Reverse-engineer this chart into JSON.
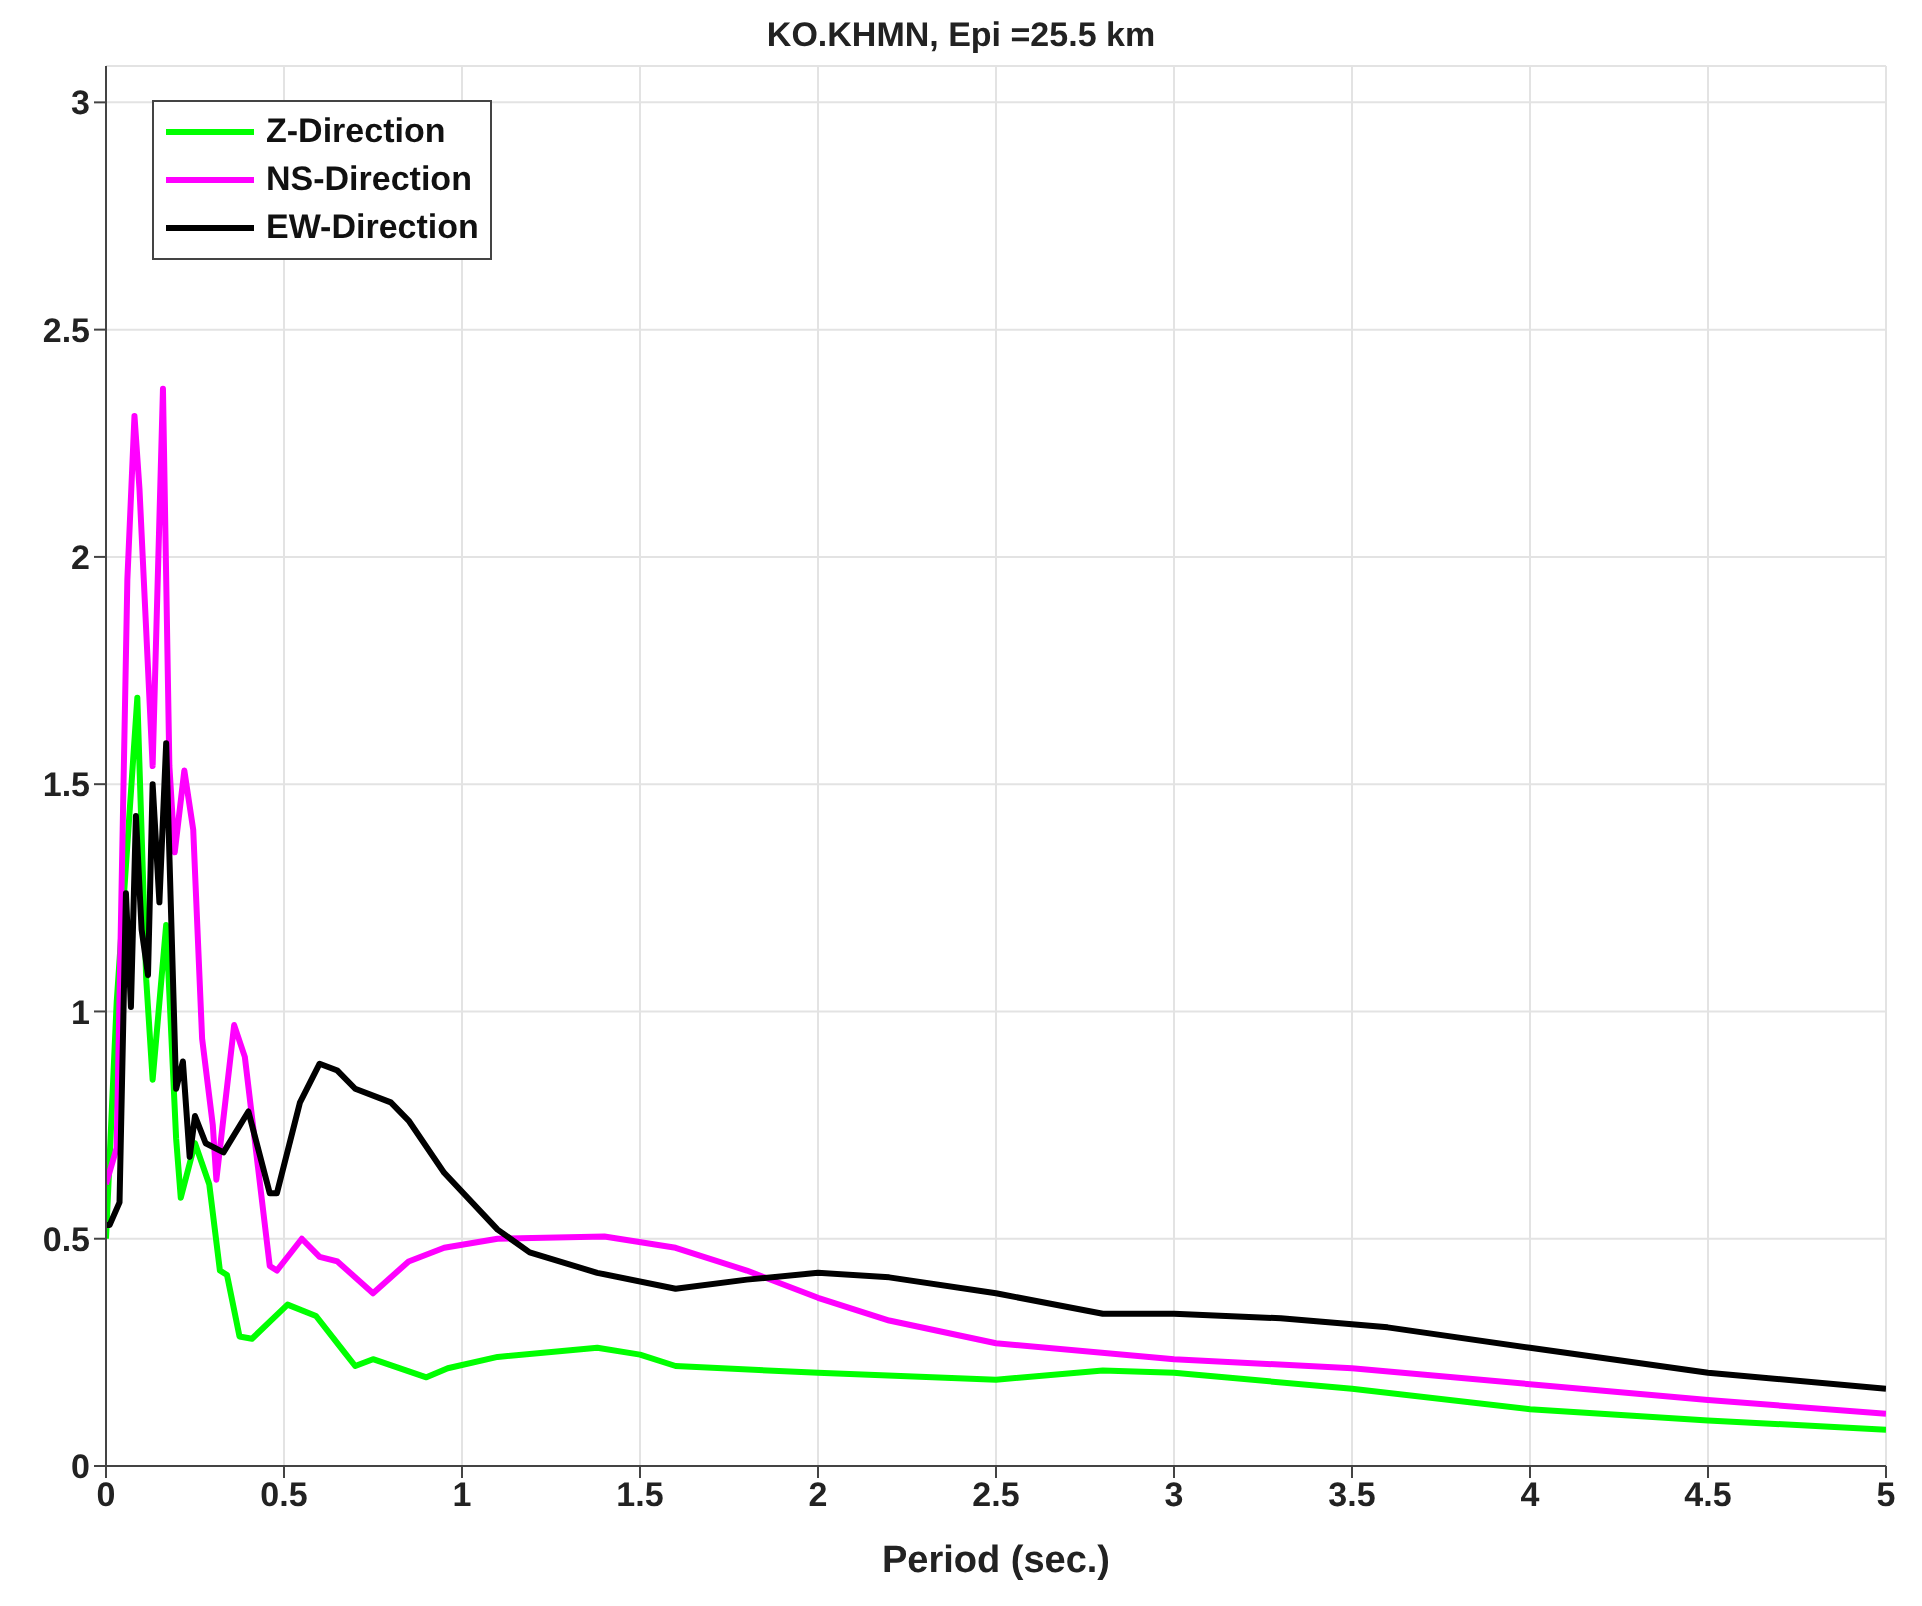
{
  "chart_data": {
    "type": "line",
    "title": "KO.KHMN, Epi =25.5 km",
    "xlabel": "Period (sec.)",
    "xlim": [
      0,
      5
    ],
    "xticks": [
      0,
      0.5,
      1,
      1.5,
      2,
      2.5,
      3,
      3.5,
      4,
      4.5,
      5
    ],
    "ylim": [
      0,
      3.08
    ],
    "yticks": [
      0,
      0.5,
      1,
      1.5,
      2,
      2.5,
      3
    ],
    "grid": true,
    "legend": "top left",
    "marker": "none",
    "line_style": "solid",
    "series": [
      {
        "name": "Z-Direction",
        "color": "#00ff00",
        "x": [
          0,
          0.03,
          0.088,
          0.113,
          0.131,
          0.169,
          0.197,
          0.21,
          0.25,
          0.29,
          0.32,
          0.34,
          0.375,
          0.41,
          0.51,
          0.59,
          0.66,
          0.7,
          0.75,
          0.9,
          0.96,
          1.1,
          1.38,
          1.5,
          1.6,
          2,
          2.5,
          2.8,
          3,
          3.5,
          4,
          4.5,
          5
        ],
        "values": [
          0.5,
          1.02,
          1.69,
          1.07,
          0.85,
          1.19,
          0.72,
          0.59,
          0.71,
          0.62,
          0.43,
          0.42,
          0.285,
          0.28,
          0.355,
          0.33,
          0.26,
          0.22,
          0.235,
          0.195,
          0.215,
          0.24,
          0.26,
          0.245,
          0.22,
          0.205,
          0.19,
          0.21,
          0.205,
          0.17,
          0.125,
          0.1,
          0.08
        ]
      },
      {
        "name": "NS-Direction",
        "color": "#ff00ff",
        "x": [
          0,
          0.03,
          0.06,
          0.08,
          0.094,
          0.131,
          0.16,
          0.178,
          0.193,
          0.22,
          0.245,
          0.27,
          0.3,
          0.31,
          0.36,
          0.39,
          0.46,
          0.48,
          0.55,
          0.6,
          0.65,
          0.75,
          0.85,
          0.95,
          1.1,
          1.4,
          1.6,
          1.8,
          2,
          2.2,
          2.5,
          3,
          3.5,
          4,
          4.5,
          5
        ],
        "values": [
          0.62,
          0.7,
          1.95,
          2.31,
          2.15,
          1.54,
          2.37,
          1.54,
          1.35,
          1.53,
          1.4,
          0.94,
          0.75,
          0.63,
          0.97,
          0.9,
          0.44,
          0.43,
          0.5,
          0.46,
          0.45,
          0.38,
          0.45,
          0.48,
          0.5,
          0.505,
          0.48,
          0.43,
          0.37,
          0.32,
          0.27,
          0.235,
          0.215,
          0.18,
          0.145,
          0.115
        ]
      },
      {
        "name": "EW-Direction",
        "color": "#000000",
        "x": [
          0,
          0.01,
          0.038,
          0.056,
          0.07,
          0.084,
          0.1,
          0.118,
          0.131,
          0.15,
          0.169,
          0.197,
          0.216,
          0.235,
          0.25,
          0.28,
          0.33,
          0.4,
          0.46,
          0.48,
          0.545,
          0.6,
          0.65,
          0.7,
          0.8,
          0.85,
          0.95,
          1.1,
          1.19,
          1.38,
          1.6,
          1.8,
          2,
          2.2,
          2.5,
          2.8,
          3,
          3.3,
          3.6,
          4,
          4.5,
          5
        ],
        "values": [
          0.53,
          0.53,
          0.58,
          1.26,
          1.01,
          1.43,
          1.18,
          1.08,
          1.5,
          1.24,
          1.59,
          0.83,
          0.89,
          0.68,
          0.77,
          0.71,
          0.69,
          0.78,
          0.6,
          0.6,
          0.8,
          0.885,
          0.87,
          0.83,
          0.8,
          0.76,
          0.645,
          0.52,
          0.47,
          0.425,
          0.39,
          0.41,
          0.425,
          0.415,
          0.38,
          0.335,
          0.335,
          0.325,
          0.305,
          0.26,
          0.205,
          0.17
        ]
      }
    ]
  }
}
